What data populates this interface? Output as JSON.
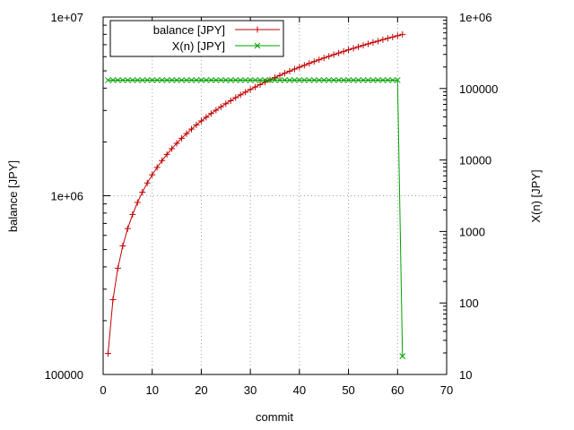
{
  "chart_data": {
    "type": "line",
    "xlabel": "commit",
    "ylabel": "balance [JPY]",
    "y2label": "X(n) [JPY]",
    "xlim": [
      0,
      70
    ],
    "ylim": [
      100000,
      10000000
    ],
    "y2lim": [
      10,
      1000000
    ],
    "yscale": "log",
    "y2scale": "log",
    "grid": true,
    "legend_position": "top-left",
    "x_ticks": [
      "0",
      "10",
      "20",
      "30",
      "40",
      "50",
      "60",
      "70"
    ],
    "y_ticks": [
      "100000",
      "1e+06",
      "1e+07"
    ],
    "y2_ticks": [
      "10",
      "100",
      "1000",
      "10000",
      "100000",
      "1e+06"
    ],
    "series": [
      {
        "name": "balance [JPY]",
        "color": "#c00000",
        "marker": "+",
        "axis": "y",
        "x": [
          1,
          2,
          3,
          4,
          5,
          6,
          7,
          8,
          9,
          10,
          11,
          12,
          13,
          14,
          15,
          16,
          17,
          18,
          19,
          20,
          21,
          22,
          23,
          24,
          25,
          26,
          27,
          28,
          29,
          30,
          31,
          32,
          33,
          34,
          35,
          36,
          37,
          38,
          39,
          40,
          41,
          42,
          43,
          44,
          45,
          46,
          47,
          48,
          49,
          50,
          51,
          52,
          53,
          54,
          55,
          56,
          57,
          58,
          59,
          60,
          61
        ],
        "values": [
          131000,
          262000,
          393000,
          524000,
          655000,
          786000,
          917000,
          1048000,
          1179000,
          1310000,
          1441000,
          1572000,
          1703000,
          1834000,
          1965000,
          2096000,
          2227000,
          2358000,
          2489000,
          2620000,
          2751000,
          2882000,
          3013000,
          3144000,
          3275000,
          3406000,
          3537000,
          3668000,
          3799000,
          3930000,
          4061000,
          4192000,
          4323000,
          4454000,
          4585000,
          4716000,
          4847000,
          4978000,
          5109000,
          5240000,
          5371000,
          5502000,
          5633000,
          5764000,
          5895000,
          6026000,
          6157000,
          6288000,
          6419000,
          6550000,
          6681000,
          6812000,
          6943000,
          7074000,
          7205000,
          7336000,
          7467000,
          7598000,
          7729000,
          7860000,
          7991000
        ]
      },
      {
        "name": "X(n) [JPY]",
        "color": "#00a000",
        "marker": "x",
        "axis": "y2",
        "x": [
          1,
          2,
          3,
          4,
          5,
          6,
          7,
          8,
          9,
          10,
          11,
          12,
          13,
          14,
          15,
          16,
          17,
          18,
          19,
          20,
          21,
          22,
          23,
          24,
          25,
          26,
          27,
          28,
          29,
          30,
          31,
          32,
          33,
          34,
          35,
          36,
          37,
          38,
          39,
          40,
          41,
          42,
          43,
          44,
          45,
          46,
          47,
          48,
          49,
          50,
          51,
          52,
          53,
          54,
          55,
          56,
          57,
          58,
          59,
          60,
          61
        ],
        "values": [
          131000,
          131000,
          131000,
          131000,
          131000,
          131000,
          131000,
          131000,
          131000,
          131000,
          131000,
          131000,
          131000,
          131000,
          131000,
          131000,
          131000,
          131000,
          131000,
          131000,
          131000,
          131000,
          131000,
          131000,
          131000,
          131000,
          131000,
          131000,
          131000,
          131000,
          131000,
          131000,
          131000,
          131000,
          131000,
          131000,
          131000,
          131000,
          131000,
          131000,
          131000,
          131000,
          131000,
          131000,
          131000,
          131000,
          131000,
          131000,
          131000,
          131000,
          131000,
          131000,
          131000,
          131000,
          131000,
          131000,
          131000,
          131000,
          131000,
          131000,
          18
        ]
      }
    ]
  }
}
